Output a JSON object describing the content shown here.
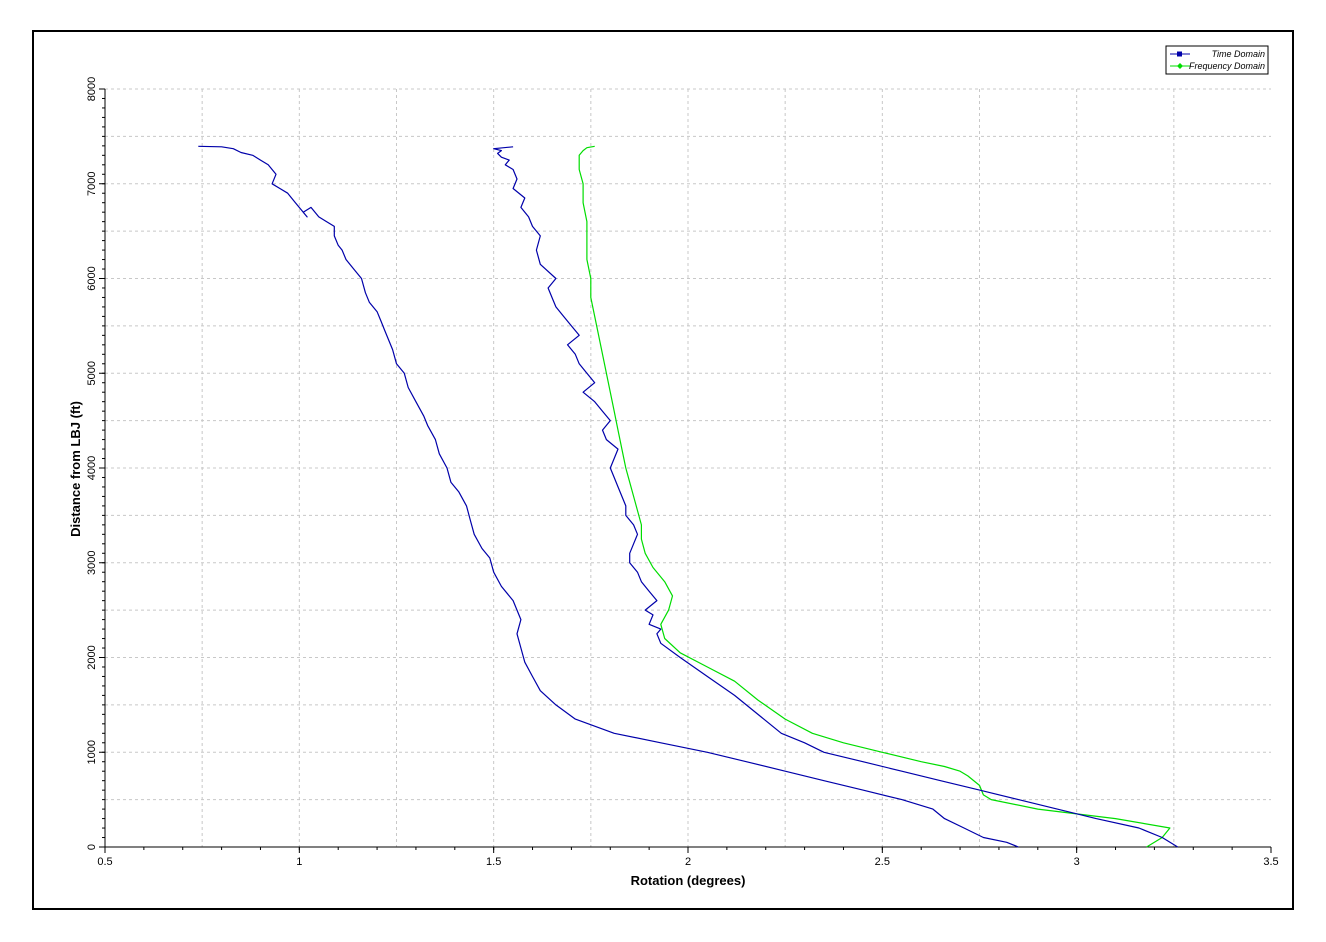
{
  "chart_data": {
    "type": "line",
    "title": "",
    "xlabel": "Rotation (degrees)",
    "ylabel": "Distance from LBJ (ft)",
    "xlim": [
      0.5,
      3.5
    ],
    "ylim": [
      0,
      8000
    ],
    "xticks": [
      0.5,
      1,
      1.5,
      2,
      2.5,
      3,
      3.5
    ],
    "xtick_labels": [
      "0.5",
      "1",
      "1.5",
      "2",
      "2.5",
      "3",
      "3.5"
    ],
    "yticks": [
      0,
      1000,
      2000,
      3000,
      4000,
      5000,
      6000,
      7000,
      8000
    ],
    "ytick_labels": [
      "0",
      "1000",
      "2000",
      "3000",
      "4000",
      "5000",
      "6000",
      "7000",
      "8000"
    ],
    "grid": true,
    "legend_position": "top-right",
    "series": [
      {
        "name": "Time Domain",
        "color": "#0000aa",
        "x": [
          2.85,
          2.82,
          2.76,
          2.71,
          2.66,
          2.63,
          2.55,
          2.45,
          2.35,
          2.25,
          2.15,
          2.05,
          1.93,
          1.81,
          1.71,
          1.66,
          1.62,
          1.6,
          1.58,
          1.57,
          1.56,
          1.57,
          1.55,
          1.52,
          1.5,
          1.49,
          1.47,
          1.45,
          1.44,
          1.43,
          1.41,
          1.39,
          1.38,
          1.36,
          1.35,
          1.33,
          1.32,
          1.3,
          1.28,
          1.27,
          1.25,
          1.24,
          1.23,
          1.22,
          1.21,
          1.2,
          1.18,
          1.17,
          1.16,
          1.14,
          1.12,
          1.11,
          1.1,
          1.09,
          1.09,
          1.07,
          1.05,
          1.03,
          1.01,
          1.02,
          0.99,
          0.97,
          0.95,
          0.93,
          0.94,
          0.92,
          0.9,
          0.88,
          0.85,
          0.83,
          0.8,
          0.74
        ],
        "y": [
          0,
          50,
          100,
          200,
          300,
          400,
          500,
          600,
          700,
          800,
          900,
          1000,
          1100,
          1200,
          1350,
          1500,
          1650,
          1800,
          1950,
          2100,
          2250,
          2400,
          2600,
          2750,
          2900,
          3050,
          3150,
          3300,
          3450,
          3600,
          3750,
          3850,
          4000,
          4150,
          4300,
          4450,
          4550,
          4700,
          4850,
          5000,
          5100,
          5250,
          5350,
          5450,
          5550,
          5650,
          5750,
          5850,
          6000,
          6100,
          6200,
          6300,
          6350,
          6450,
          6550,
          6600,
          6650,
          6750,
          6700,
          6650,
          6800,
          6900,
          6950,
          7000,
          7100,
          7200,
          7250,
          7300,
          7330,
          7370,
          7390,
          7395
        ]
      },
      {
        "name": "Frequency Domain",
        "color": "#00dd00",
        "x": [
          3.18,
          3.22,
          3.24,
          3.1,
          2.9,
          2.78,
          2.76,
          2.75,
          2.72,
          2.7,
          2.66,
          2.6,
          2.5,
          2.4,
          2.32,
          2.25,
          2.18,
          2.12,
          2.05,
          1.98,
          1.94,
          1.93,
          1.95,
          1.96,
          1.94,
          1.91,
          1.89,
          1.88,
          1.88,
          1.87,
          1.86,
          1.85,
          1.84,
          1.83,
          1.82,
          1.81,
          1.8,
          1.79,
          1.78,
          1.77,
          1.76,
          1.75,
          1.75,
          1.74,
          1.74,
          1.74,
          1.73,
          1.73,
          1.72,
          1.72,
          1.73,
          1.74,
          1.76
        ],
        "y": [
          0,
          100,
          200,
          300,
          400,
          500,
          550,
          650,
          750,
          800,
          850,
          900,
          1000,
          1100,
          1200,
          1350,
          1550,
          1750,
          1900,
          2050,
          2200,
          2350,
          2500,
          2650,
          2800,
          2950,
          3100,
          3250,
          3400,
          3550,
          3700,
          3850,
          4000,
          4200,
          4400,
          4600,
          4800,
          5000,
          5200,
          5400,
          5600,
          5800,
          6000,
          6200,
          6400,
          6600,
          6800,
          7000,
          7150,
          7300,
          7350,
          7380,
          7395
        ]
      },
      {
        "name": "",
        "color": "#0000aa",
        "x": [
          3.26,
          3.22,
          3.16,
          3.05,
          2.95,
          2.85,
          2.75,
          2.65,
          2.55,
          2.45,
          2.35,
          2.3,
          2.24,
          2.18,
          2.12,
          2.05,
          1.98,
          1.93,
          1.92,
          1.93,
          1.9,
          1.91,
          1.89,
          1.92,
          1.9,
          1.88,
          1.87,
          1.85,
          1.85,
          1.86,
          1.87,
          1.86,
          1.84,
          1.84,
          1.83,
          1.82,
          1.81,
          1.8,
          1.82,
          1.79,
          1.78,
          1.8,
          1.78,
          1.76,
          1.73,
          1.76,
          1.74,
          1.72,
          1.71,
          1.69,
          1.72,
          1.7,
          1.68,
          1.66,
          1.65,
          1.64,
          1.66,
          1.62,
          1.61,
          1.62,
          1.6,
          1.59,
          1.57,
          1.58,
          1.55,
          1.56,
          1.55,
          1.53,
          1.54,
          1.52,
          1.51,
          1.52,
          1.5,
          1.55
        ],
        "y": [
          0,
          100,
          200,
          300,
          400,
          500,
          600,
          700,
          800,
          900,
          1000,
          1100,
          1200,
          1400,
          1600,
          1800,
          2000,
          2150,
          2250,
          2300,
          2350,
          2450,
          2500,
          2600,
          2700,
          2800,
          2900,
          3000,
          3100,
          3200,
          3300,
          3400,
          3500,
          3600,
          3700,
          3800,
          3900,
          4000,
          4200,
          4300,
          4400,
          4500,
          4600,
          4700,
          4800,
          4900,
          5000,
          5100,
          5200,
          5300,
          5400,
          5500,
          5600,
          5700,
          5800,
          5900,
          6000,
          6150,
          6300,
          6450,
          6550,
          6650,
          6750,
          6850,
          6950,
          7050,
          7150,
          7200,
          7250,
          7280,
          7320,
          7350,
          7370,
          7390
        ]
      }
    ]
  }
}
